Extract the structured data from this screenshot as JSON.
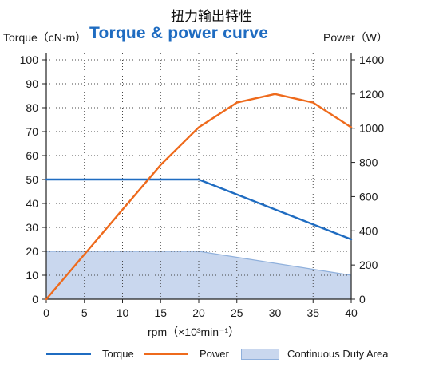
{
  "header": {
    "cn_title": "扭力输出特性",
    "title": "Torque & power curve"
  },
  "chart_data": {
    "type": "line",
    "title": "Torque & power curve",
    "xlabel": "rpm（×10³min⁻¹）",
    "ylabel": "Torque（cN·m）",
    "y2label": "Power（W）",
    "xlim": [
      0,
      40
    ],
    "ylim": [
      0,
      100
    ],
    "y2lim": [
      0,
      1400
    ],
    "x_ticks": [
      0,
      5,
      10,
      15,
      20,
      25,
      30,
      35,
      40
    ],
    "y_ticks": [
      0,
      10,
      20,
      30,
      40,
      50,
      60,
      70,
      80,
      90,
      100
    ],
    "y2_ticks": [
      0,
      200,
      400,
      600,
      800,
      1000,
      1200,
      1400
    ],
    "grid": true,
    "legend_position": "bottom",
    "series": [
      {
        "name": "Torque",
        "axis": "left",
        "color": "#1f6cc1",
        "x": [
          0,
          20,
          40
        ],
        "y": [
          50,
          50,
          25
        ]
      },
      {
        "name": "Power",
        "axis": "right",
        "color": "#ee6a1c",
        "x": [
          0,
          5,
          10,
          15,
          20,
          25,
          30,
          35,
          40
        ],
        "y": [
          0,
          262,
          524,
          785,
          1005,
          1150,
          1200,
          1150,
          1005
        ]
      }
    ],
    "area": {
      "name": "Continuous Duty Area",
      "axis": "left",
      "color": "#c9d7ee",
      "edge_color": "#8fb0dc",
      "x": [
        0,
        20,
        40
      ],
      "y": [
        20,
        20,
        10
      ]
    }
  }
}
